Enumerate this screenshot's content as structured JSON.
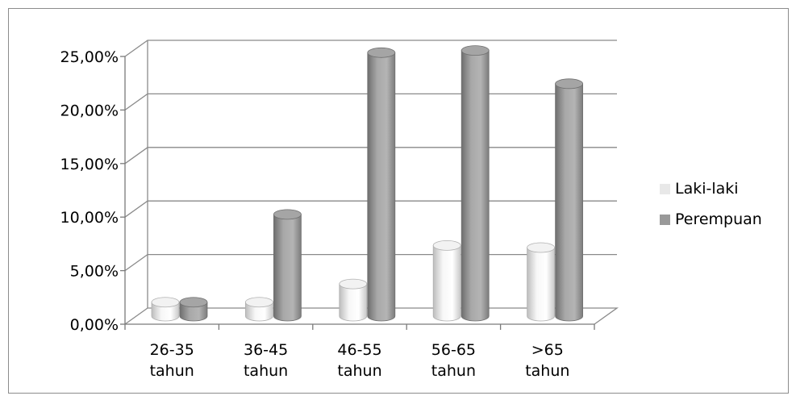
{
  "chart_data": {
    "type": "bar",
    "title": "",
    "xlabel": "",
    "ylabel": "",
    "categories": [
      [
        "26-35",
        "tahun"
      ],
      [
        "36-45",
        "tahun"
      ],
      [
        "46-55",
        "tahun"
      ],
      [
        "56-65",
        "tahun"
      ],
      [
        ">65",
        "tahun"
      ]
    ],
    "series": [
      {
        "name": "Laki-laki",
        "color": "#e8e8e8",
        "values": [
          1.3,
          1.3,
          3.0,
          6.6,
          6.4
        ]
      },
      {
        "name": "Perempuan",
        "color": "#999999",
        "values": [
          1.3,
          9.5,
          24.6,
          24.8,
          21.7
        ]
      }
    ],
    "ylim": [
      0,
      25
    ],
    "yticks": [
      "0,00%",
      "5,00%",
      "10,00%",
      "15,00%",
      "20,00%",
      "25,00%"
    ],
    "grid": true,
    "legend_position": "right",
    "style": "3d-cylinder"
  }
}
